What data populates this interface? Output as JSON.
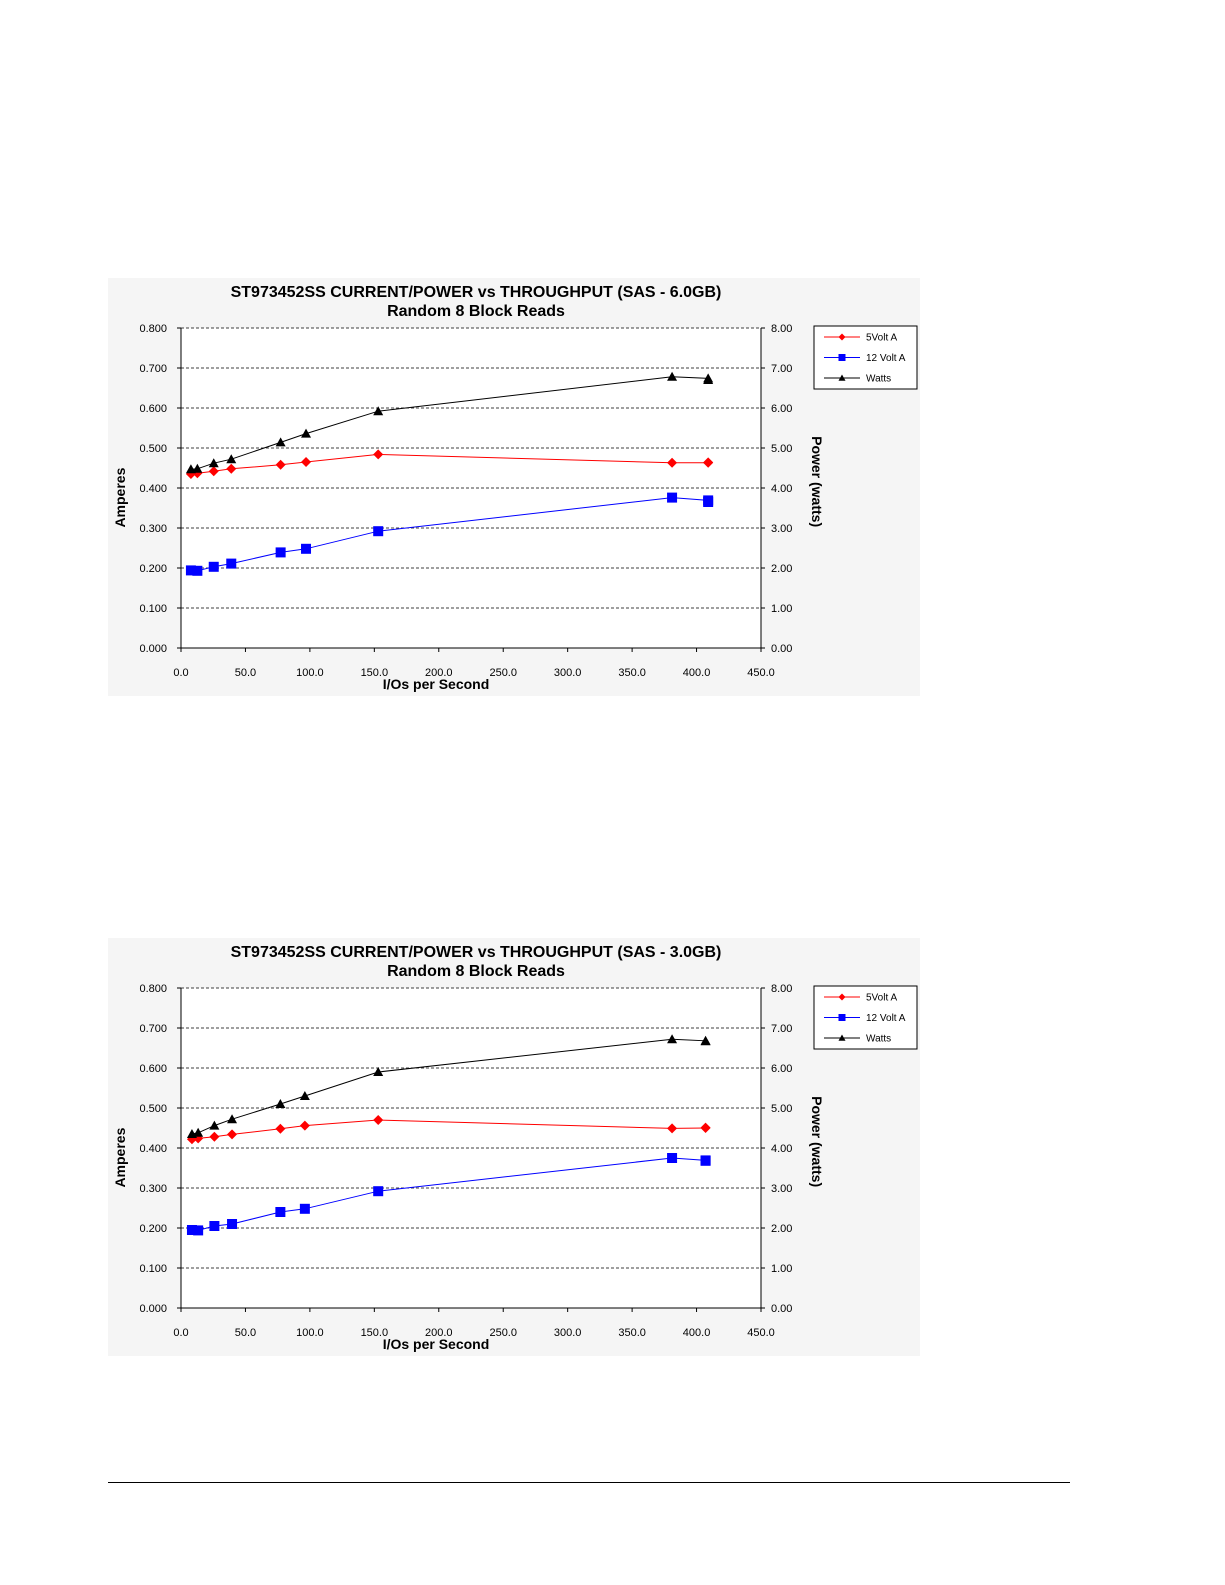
{
  "chart_data": [
    {
      "type": "line",
      "title": "ST973452SS CURRENT/POWER vs THROUGHPUT (SAS - 6.0GB)",
      "subtitle": "Random 8 Block Reads",
      "xlabel": "I/Os per Second",
      "ylabel": "Amperes",
      "y2label": "Power (watts)",
      "xlim": [
        0,
        450
      ],
      "ylim": [
        0,
        0.8
      ],
      "y2lim": [
        0,
        8
      ],
      "x_ticks": [
        "0.0",
        "50.0",
        "100.0",
        "150.0",
        "200.0",
        "250.0",
        "300.0",
        "350.0",
        "400.0",
        "450.0"
      ],
      "y_ticks": [
        "0.000",
        "0.100",
        "0.200",
        "0.300",
        "0.400",
        "0.500",
        "0.600",
        "0.700",
        "0.800"
      ],
      "y2_ticks": [
        "0.00",
        "1.00",
        "2.00",
        "3.00",
        "4.00",
        "5.00",
        "6.00",
        "7.00",
        "8.00"
      ],
      "grid": "horizontal dashed",
      "legend": "top-right",
      "series": [
        {
          "name": "5Volt A",
          "axis": "left",
          "color": "#ff0000",
          "marker": "diamond",
          "x": [
            7.7,
            12.7,
            25.4,
            39,
            77.3,
            97,
            153,
            381,
            409,
            409
          ],
          "y": [
            0.435,
            0.437,
            0.442,
            0.448,
            0.458,
            0.465,
            0.484,
            0.463,
            0.463,
            0.464
          ]
        },
        {
          "name": "12 Volt A",
          "axis": "left",
          "color": "#0000ff",
          "marker": "square",
          "x": [
            7.7,
            12.7,
            25.4,
            39,
            77.3,
            97,
            153,
            381,
            409,
            409
          ],
          "y": [
            0.194,
            0.193,
            0.203,
            0.211,
            0.239,
            0.248,
            0.292,
            0.376,
            0.369,
            0.365
          ]
        },
        {
          "name": "Watts",
          "axis": "right",
          "color": "#000000",
          "marker": "triangle",
          "x": [
            7.7,
            12.7,
            25.4,
            39,
            77.3,
            97,
            153,
            381,
            409,
            409
          ],
          "y": [
            4.47,
            4.48,
            4.62,
            4.72,
            5.14,
            5.36,
            5.92,
            6.78,
            6.74,
            6.7
          ]
        }
      ]
    },
    {
      "type": "line",
      "title": "ST973452SS CURRENT/POWER vs THROUGHPUT (SAS - 3.0GB)",
      "subtitle": "Random 8 Block Reads",
      "xlabel": "I/Os per Second",
      "ylabel": "Amperes",
      "y2label": "Power (watts)",
      "xlim": [
        0,
        450
      ],
      "ylim": [
        0,
        0.8
      ],
      "y2lim": [
        0,
        8
      ],
      "x_ticks": [
        "0.0",
        "50.0",
        "100.0",
        "150.0",
        "200.0",
        "250.0",
        "300.0",
        "350.0",
        "400.0",
        "450.0"
      ],
      "y_ticks": [
        "0.000",
        "0.100",
        "0.200",
        "0.300",
        "0.400",
        "0.500",
        "0.600",
        "0.700",
        "0.800"
      ],
      "y2_ticks": [
        "0.00",
        "1.00",
        "2.00",
        "3.00",
        "4.00",
        "5.00",
        "6.00",
        "7.00",
        "8.00"
      ],
      "grid": "horizontal dashed",
      "legend": "top-right",
      "series": [
        {
          "name": "5Volt A",
          "axis": "left",
          "color": "#ff0000",
          "marker": "diamond",
          "x": [
            8.5,
            13.3,
            25.9,
            39.6,
            77.1,
            96.1,
            153,
            381,
            407,
            407
          ],
          "y": [
            0.422,
            0.424,
            0.428,
            0.434,
            0.448,
            0.456,
            0.47,
            0.449,
            0.45,
            0.451
          ]
        },
        {
          "name": "12 Volt A",
          "axis": "left",
          "color": "#0000ff",
          "marker": "square",
          "x": [
            8.5,
            13.3,
            25.9,
            39.6,
            77.1,
            96.1,
            153,
            381,
            407,
            407
          ],
          "y": [
            0.195,
            0.194,
            0.205,
            0.21,
            0.24,
            0.248,
            0.292,
            0.375,
            0.369,
            0.368
          ]
        },
        {
          "name": "Watts",
          "axis": "right",
          "color": "#000000",
          "marker": "triangle",
          "x": [
            8.5,
            13.3,
            25.9,
            39.6,
            77.1,
            96.1,
            153,
            381,
            407,
            407
          ],
          "y": [
            4.35,
            4.38,
            4.56,
            4.72,
            5.1,
            5.3,
            5.9,
            6.72,
            6.68,
            6.67
          ]
        }
      ]
    }
  ]
}
